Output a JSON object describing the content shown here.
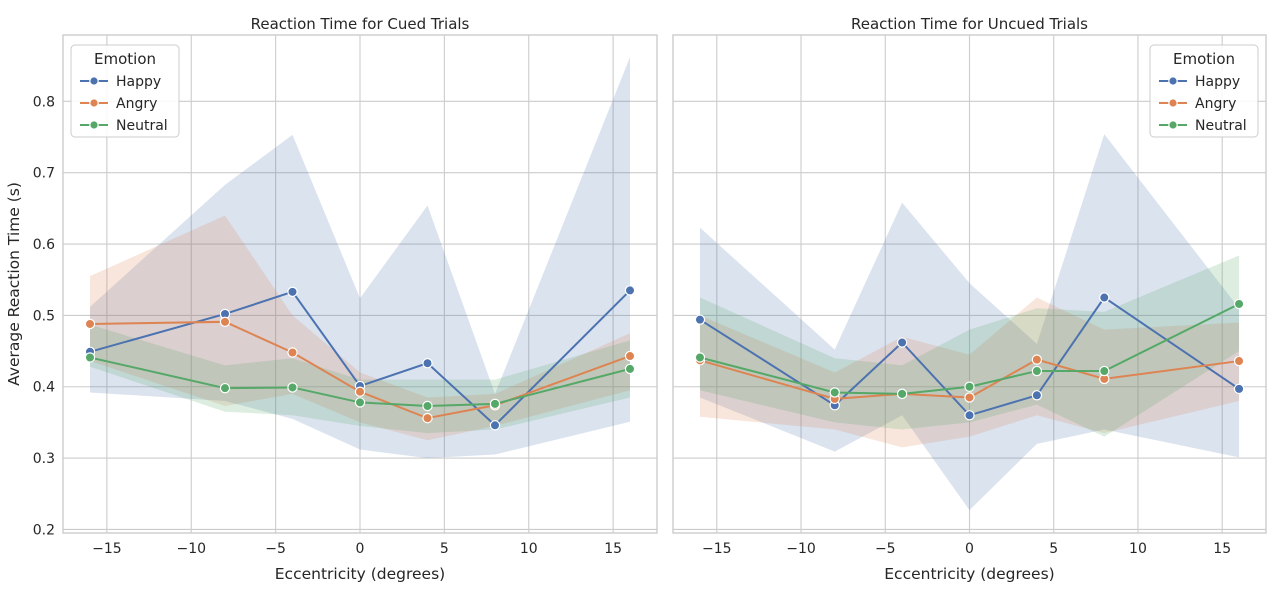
{
  "chart_data": [
    {
      "type": "line",
      "title": "Reaction Time for Cued Trials",
      "xlabel": "Eccentricity (degrees)",
      "ylabel": "Average Reaction Time (s)",
      "xlim": [
        -17.6,
        17.6
      ],
      "ylim": [
        0.195,
        0.893
      ],
      "xticks": [
        -15,
        -10,
        -5,
        0,
        5,
        10,
        15
      ],
      "yticks": [
        0.2,
        0.3,
        0.4,
        0.5,
        0.6,
        0.7,
        0.8
      ],
      "grid": true,
      "legend": {
        "title": "Emotion",
        "placement": "top-left"
      },
      "x": [
        -16,
        -8,
        -4,
        0,
        4,
        8,
        16
      ],
      "series": [
        {
          "name": "Happy",
          "color": "#4c72b0",
          "values": [
            0.449,
            0.502,
            0.533,
            0.401,
            0.433,
            0.346,
            0.535
          ],
          "ci_low": [
            0.392,
            0.38,
            0.355,
            0.312,
            0.3,
            0.305,
            0.351
          ],
          "ci_high": [
            0.512,
            0.683,
            0.753,
            0.524,
            0.654,
            0.39,
            0.862
          ]
        },
        {
          "name": "Angry",
          "color": "#dd8452",
          "values": [
            0.488,
            0.491,
            0.448,
            0.393,
            0.356,
            0.374,
            0.443
          ],
          "ci_low": [
            0.436,
            0.373,
            0.39,
            0.35,
            0.325,
            0.345,
            0.395
          ],
          "ci_high": [
            0.555,
            0.64,
            0.5,
            0.42,
            0.385,
            0.39,
            0.475
          ]
        },
        {
          "name": "Neutral",
          "color": "#55a868",
          "values": [
            0.441,
            0.398,
            0.399,
            0.378,
            0.373,
            0.376,
            0.425
          ],
          "ci_low": [
            0.428,
            0.365,
            0.36,
            0.345,
            0.335,
            0.34,
            0.385
          ],
          "ci_high": [
            0.487,
            0.43,
            0.44,
            0.41,
            0.41,
            0.41,
            0.465
          ]
        }
      ]
    },
    {
      "type": "line",
      "title": "Reaction Time for Uncued Trials",
      "xlabel": "Eccentricity (degrees)",
      "ylabel": "",
      "xlim": [
        -17.6,
        17.6
      ],
      "ylim": [
        0.195,
        0.893
      ],
      "xticks": [
        -15,
        -10,
        -5,
        0,
        5,
        10,
        15
      ],
      "yticks": [
        0.2,
        0.3,
        0.4,
        0.5,
        0.6,
        0.7,
        0.8
      ],
      "grid": true,
      "legend": {
        "title": "Emotion",
        "placement": "top-right"
      },
      "x": [
        -16,
        -8,
        -4,
        0,
        4,
        8,
        16
      ],
      "series": [
        {
          "name": "Happy",
          "color": "#4c72b0",
          "values": [
            0.494,
            0.374,
            0.462,
            0.36,
            0.388,
            0.525,
            0.397
          ],
          "ci_low": [
            0.385,
            0.309,
            0.36,
            0.227,
            0.32,
            0.34,
            0.301
          ],
          "ci_high": [
            0.623,
            0.452,
            0.658,
            0.545,
            0.46,
            0.754,
            0.51
          ]
        },
        {
          "name": "Angry",
          "color": "#dd8452",
          "values": [
            0.437,
            0.383,
            0.39,
            0.385,
            0.438,
            0.411,
            0.436
          ],
          "ci_low": [
            0.358,
            0.34,
            0.315,
            0.33,
            0.36,
            0.335,
            0.38
          ],
          "ci_high": [
            0.5,
            0.42,
            0.47,
            0.445,
            0.525,
            0.48,
            0.49
          ]
        },
        {
          "name": "Neutral",
          "color": "#55a868",
          "values": [
            0.441,
            0.392,
            0.39,
            0.4,
            0.422,
            0.422,
            0.516
          ],
          "ci_low": [
            0.395,
            0.35,
            0.34,
            0.35,
            0.375,
            0.33,
            0.45
          ],
          "ci_high": [
            0.525,
            0.44,
            0.43,
            0.48,
            0.51,
            0.505,
            0.584
          ]
        }
      ]
    }
  ]
}
